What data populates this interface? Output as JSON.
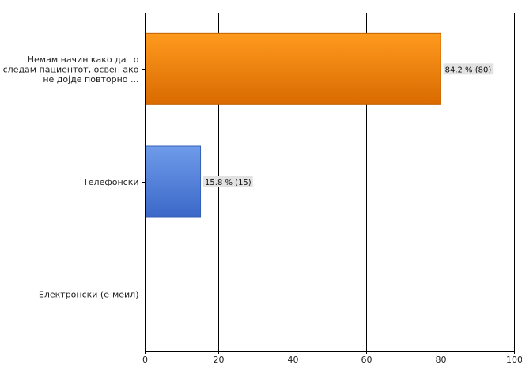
{
  "chart_data": {
    "type": "bar",
    "orientation": "horizontal",
    "categories": [
      [
        "Немам начин како да го",
        "следам пациентот, освен ако",
        "не дојде  повторно  ..."
      ],
      [
        "Телефонски"
      ],
      [
        "Електронски (е-меил)"
      ]
    ],
    "values": [
      80,
      15,
      0
    ],
    "data_labels": [
      "84.2 % (80)",
      "15.8 % (15)",
      ""
    ],
    "xlim": [
      0,
      100
    ],
    "x_ticks": [
      "0",
      "20",
      "40",
      "60",
      "80",
      "100"
    ],
    "grid": true,
    "bar_colors": [
      {
        "top": "#FF9A1E",
        "bottom": "#D96A00",
        "stroke": "#c06000"
      },
      {
        "top": "#6F9BEA",
        "bottom": "#3B68C8",
        "stroke": "#3560b8"
      },
      {
        "top": "#6F9BEA",
        "bottom": "#3B68C8",
        "stroke": "#3560b8"
      }
    ]
  }
}
